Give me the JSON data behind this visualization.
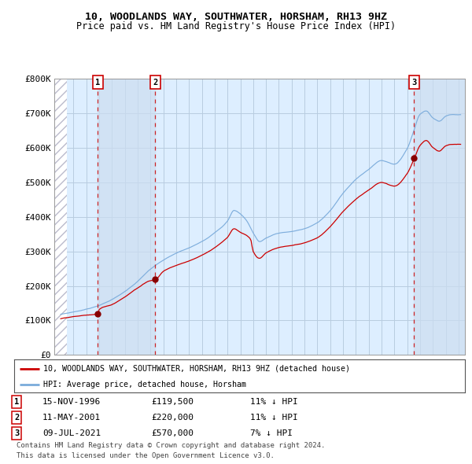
{
  "title": "10, WOODLANDS WAY, SOUTHWATER, HORSHAM, RH13 9HZ",
  "subtitle": "Price paid vs. HM Land Registry's House Price Index (HPI)",
  "legend_line1": "10, WOODLANDS WAY, SOUTHWATER, HORSHAM, RH13 9HZ (detached house)",
  "legend_line2": "HPI: Average price, detached house, Horsham",
  "sale_years": [
    1996.877,
    2001.36,
    2021.52
  ],
  "sale_prices": [
    119500,
    220000,
    570000
  ],
  "sale_labels": [
    "1",
    "2",
    "3"
  ],
  "sale_infos": [
    "15-NOV-1996",
    "11-MAY-2001",
    "09-JUL-2021"
  ],
  "sale_amounts": [
    "£119,500",
    "£220,000",
    "£570,000"
  ],
  "sale_hpi_text": [
    "11% ↓ HPI",
    "11% ↓ HPI",
    "7% ↓ HPI"
  ],
  "ylim": [
    0,
    800000
  ],
  "yticks": [
    0,
    100000,
    200000,
    300000,
    400000,
    500000,
    600000,
    700000,
    800000
  ],
  "ytick_labels": [
    "£0",
    "£100K",
    "£200K",
    "£300K",
    "£400K",
    "£500K",
    "£600K",
    "£700K",
    "£800K"
  ],
  "bg_color": "#ddeeff",
  "hatch_color": "#bbbbcc",
  "grid_color": "#b8cce0",
  "red_color": "#cc0000",
  "blue_color": "#7aabdb",
  "dot_color": "#880000",
  "shade_color": "#ccddf0",
  "shade1_start": 1996.877,
  "shade1_end": 2001.36,
  "shade2_start": 2021.52,
  "shade2_end": 2025.5,
  "xlim_start": 1993.5,
  "xlim_end": 2025.5,
  "hatch_end": 1994.5,
  "footnote1": "Contains HM Land Registry data © Crown copyright and database right 2024.",
  "footnote2": "This data is licensed under the Open Government Licence v3.0."
}
